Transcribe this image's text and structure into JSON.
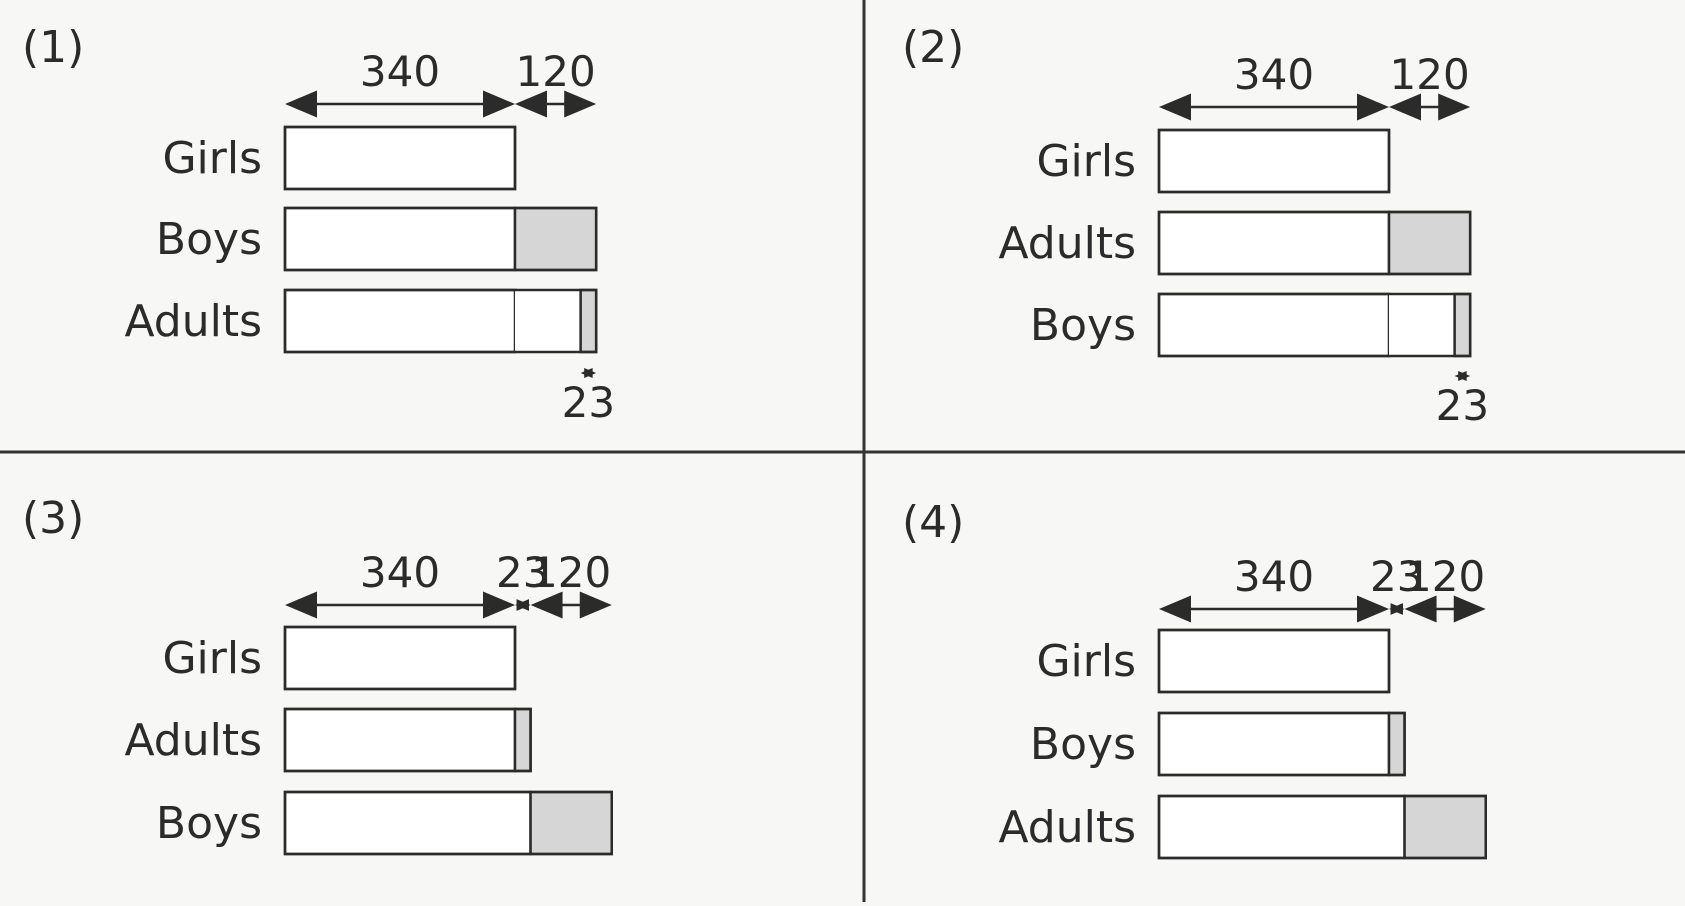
{
  "colors": {
    "background": "#f7f7f5",
    "line": "#2b2b2b",
    "bar_fill": "#ffffff",
    "bar_shade": "#d6d6d6",
    "divider": "#333333"
  },
  "panels": [
    {
      "number": "(1)",
      "bars": [
        {
          "label": "Girls",
          "segments": [
            {
              "value": 340,
              "shaded": false
            }
          ]
        },
        {
          "label": "Boys",
          "segments": [
            {
              "value": 340,
              "shaded": false
            },
            {
              "value": 120,
              "shaded": true
            }
          ]
        },
        {
          "label": "Adults",
          "segments": [
            {
              "value": 340,
              "shaded": false
            },
            {
              "value": 97,
              "shaded": false
            },
            {
              "value": 23,
              "shaded": true,
              "marker": "end"
            }
          ]
        }
      ],
      "top_dims": [
        {
          "label": "340",
          "start": 0,
          "end": 340
        },
        {
          "label": "120",
          "start": 340,
          "end": 460
        }
      ],
      "bottom_dim": {
        "label": "23",
        "start": 437,
        "end": 460
      }
    },
    {
      "number": "(2)",
      "bars": [
        {
          "label": "Girls",
          "segments": [
            {
              "value": 340,
              "shaded": false
            }
          ]
        },
        {
          "label": "Adults",
          "segments": [
            {
              "value": 340,
              "shaded": false
            },
            {
              "value": 120,
              "shaded": true
            }
          ]
        },
        {
          "label": "Boys",
          "segments": [
            {
              "value": 340,
              "shaded": false
            },
            {
              "value": 97,
              "shaded": false
            },
            {
              "value": 23,
              "shaded": true
            }
          ]
        }
      ],
      "top_dims": [
        {
          "label": "340",
          "start": 0,
          "end": 340
        },
        {
          "label": "120",
          "start": 340,
          "end": 460
        }
      ],
      "bottom_dim": {
        "label": "23",
        "start": 437,
        "end": 460
      }
    },
    {
      "number": "(3)",
      "bars": [
        {
          "label": "Girls",
          "segments": [
            {
              "value": 340,
              "shaded": false
            }
          ]
        },
        {
          "label": "Adults",
          "segments": [
            {
              "value": 340,
              "shaded": false
            },
            {
              "value": 23,
              "shaded": true
            }
          ]
        },
        {
          "label": "Boys",
          "segments": [
            {
              "value": 363,
              "shaded": false
            },
            {
              "value": 120,
              "shaded": true
            }
          ]
        }
      ],
      "top_dims": [
        {
          "label": "340",
          "start": 0,
          "end": 340
        },
        {
          "label": "23",
          "start": 340,
          "end": 363
        },
        {
          "label": "120",
          "start": 363,
          "end": 483
        }
      ],
      "bottom_dim": null
    },
    {
      "number": "(4)",
      "bars": [
        {
          "label": "Girls",
          "segments": [
            {
              "value": 340,
              "shaded": false
            }
          ]
        },
        {
          "label": "Boys",
          "segments": [
            {
              "value": 340,
              "shaded": false
            },
            {
              "value": 23,
              "shaded": true
            }
          ]
        },
        {
          "label": "Adults",
          "segments": [
            {
              "value": 363,
              "shaded": false
            },
            {
              "value": 120,
              "shaded": true
            }
          ]
        }
      ],
      "top_dims": [
        {
          "label": "340",
          "start": 0,
          "end": 340
        },
        {
          "label": "23",
          "start": 340,
          "end": 363
        },
        {
          "label": "120",
          "start": 363,
          "end": 483
        }
      ],
      "bottom_dim": null
    }
  ]
}
